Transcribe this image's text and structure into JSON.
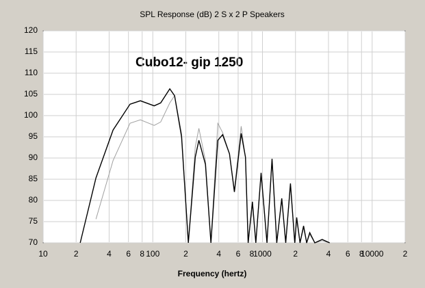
{
  "chart_data": {
    "type": "line",
    "title": "SPL Response (dB)   2 S x 2 P Speakers",
    "annotation": "Cubo12- gip 1250",
    "x_label": "Frequency (hertz)",
    "log_x": true,
    "grid": true,
    "x": [
      21.8,
      30.3,
      43.4,
      62,
      77,
      103,
      118,
      143,
      158,
      183,
      211,
      244,
      263,
      302,
      339,
      392,
      433,
      500,
      555,
      640,
      700,
      740,
      810,
      870,
      971,
      1100,
      1223,
      1350,
      1500,
      1630,
      1800,
      1970,
      2050,
      2200,
      2370,
      2530,
      2700,
      3000,
      3500,
      4100
    ],
    "series": [
      {
        "color": "#000000",
        "values": [
          70,
          85.3,
          96.6,
          102.7,
          103.5,
          102.3,
          103,
          106.3,
          104.7,
          95,
          70,
          90.2,
          94.2,
          88.5,
          70,
          94.2,
          95.5,
          91,
          82,
          95.8,
          90.2,
          70,
          79.7,
          70,
          86.5,
          70,
          89.8,
          70,
          80.5,
          70,
          84,
          70,
          76,
          70,
          74,
          70,
          72.4,
          70,
          70.8,
          70
        ]
      },
      {
        "color": "#a0a0a0",
        "values": [
          null,
          75.6,
          89.4,
          98.2,
          99,
          97.7,
          98.5,
          103,
          104.7,
          95.8,
          70,
          92.6,
          97,
          89.4,
          70,
          98.2,
          96,
          91,
          82.5,
          97.5,
          90,
          70,
          79,
          70,
          86,
          70,
          89.5,
          70,
          80,
          70,
          83.5,
          70,
          75.5,
          70,
          73.5,
          70,
          72,
          70,
          70.5,
          70
        ]
      }
    ],
    "xlim": [
      10,
      20000
    ],
    "xticks": [
      10,
      {
        "value": 20,
        "label": "2"
      },
      {
        "value": 40,
        "label": "4"
      },
      {
        "value": 60,
        "label": "6"
      },
      {
        "value": 80,
        "label": "8"
      },
      100,
      {
        "value": 200,
        "label": "2"
      },
      {
        "value": 400,
        "label": "4"
      },
      {
        "value": 600,
        "label": "6"
      },
      {
        "value": 800,
        "label": "8"
      },
      1000,
      {
        "value": 2000,
        "label": "2"
      },
      {
        "value": 4000,
        "label": "4"
      },
      {
        "value": 6000,
        "label": "6"
      },
      {
        "value": 8000,
        "label": "8"
      },
      10000,
      {
        "value": 20000,
        "label": "2"
      }
    ],
    "ylim": [
      70,
      120
    ],
    "yticks": [
      70,
      75,
      80,
      85,
      90,
      95,
      100,
      105,
      110,
      115,
      120
    ]
  }
}
